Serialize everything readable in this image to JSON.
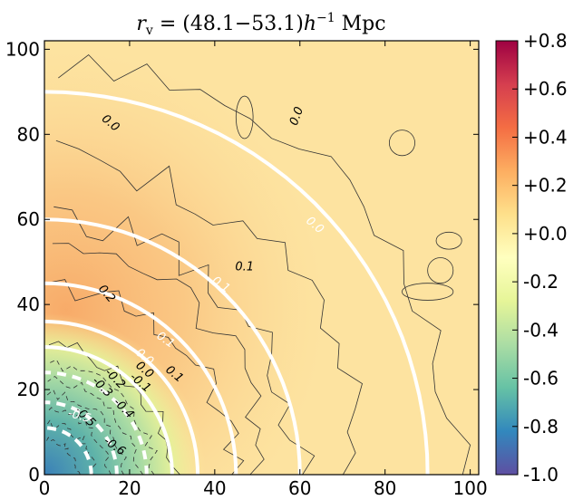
{
  "chart_data": {
    "type": "heatmap",
    "title": "r_v = (48.1−53.1) h⁻¹ Mpc",
    "title_parts": {
      "r": "r",
      "sub": "v",
      "body": " = (48.1−53.1)",
      "h": "h",
      "exp": "−1",
      "unit": " Mpc"
    },
    "xlabel": "",
    "ylabel": "",
    "xlim": [
      0,
      102
    ],
    "ylim": [
      0,
      102
    ],
    "xticks": [
      0,
      20,
      40,
      60,
      80,
      100
    ],
    "yticks": [
      0,
      20,
      40,
      60,
      80,
      100
    ],
    "xtick_labels": [
      "0",
      "20",
      "40",
      "60",
      "80",
      "100"
    ],
    "ytick_labels": [
      "0",
      "20",
      "40",
      "60",
      "80",
      "100"
    ],
    "colorbar": {
      "min": -1.0,
      "max": 0.8,
      "ticks": [
        0.8,
        0.6,
        0.4,
        0.2,
        0.0,
        -0.2,
        -0.4,
        -0.6,
        -0.8,
        -1.0
      ],
      "tick_labels": [
        "+0.8",
        "+0.6",
        "+0.4",
        "+0.2",
        "+0.0",
        "-0.2",
        "-0.4",
        "-0.6",
        "-0.8",
        "-1.0"
      ],
      "colormap": "Spectral_r"
    },
    "grid": false,
    "white_contours": [
      {
        "level": "0.0",
        "radius": 90
      },
      {
        "level": "0.0",
        "radius": 60
      },
      {
        "level": "0.1",
        "radius": 45
      },
      {
        "level": "0.1",
        "radius": 36
      },
      {
        "level": "0.0",
        "radius": 30
      },
      {
        "level": "-0.2",
        "radius": 24,
        "dashed": true
      },
      {
        "level": "-0.4",
        "radius": 17,
        "dashed": true
      },
      {
        "level": "-0.6",
        "radius": 11,
        "dashed": true
      }
    ],
    "contour_labels": [
      {
        "text": "0.0",
        "x": 15,
        "y": 82,
        "rot": 40,
        "color": "black"
      },
      {
        "text": "0.0",
        "x": 60,
        "y": 84,
        "rot": -70,
        "color": "black"
      },
      {
        "text": "0.0",
        "x": 63,
        "y": 58,
        "rot": 40,
        "color": "white"
      },
      {
        "text": "0.1",
        "x": 47,
        "y": 48,
        "rot": 0,
        "color": "black"
      },
      {
        "text": "0.1",
        "x": 41,
        "y": 44,
        "rot": 35,
        "color": "white"
      },
      {
        "text": "0.2",
        "x": 14,
        "y": 42,
        "rot": 50,
        "color": "black"
      },
      {
        "text": "0.1",
        "x": 28,
        "y": 31,
        "rot": 35,
        "color": "white"
      },
      {
        "text": "0.0",
        "x": 23,
        "y": 27,
        "rot": 40,
        "color": "white"
      },
      {
        "text": "0.0",
        "x": 23,
        "y": 24,
        "rot": 40,
        "color": "black"
      },
      {
        "text": "0.1",
        "x": 30,
        "y": 23,
        "rot": 40,
        "color": "black"
      },
      {
        "text": "-0.1",
        "x": 22,
        "y": 21,
        "rot": 40,
        "color": "black"
      },
      {
        "text": "-0.2",
        "x": 16,
        "y": 22,
        "rot": 45,
        "color": "black"
      },
      {
        "text": "-0.3",
        "x": 13,
        "y": 20,
        "rot": 45,
        "color": "black"
      },
      {
        "text": "-0.4",
        "x": 18,
        "y": 15,
        "rot": 45,
        "color": "black"
      },
      {
        "text": "-0.5",
        "x": 9,
        "y": 13,
        "rot": 45,
        "color": "black"
      },
      {
        "text": "-0.5",
        "x": 8,
        "y": 13,
        "rot": 15,
        "color": "white"
      },
      {
        "text": "-0.6",
        "x": 16,
        "y": 6,
        "rot": 35,
        "color": "black"
      }
    ]
  }
}
